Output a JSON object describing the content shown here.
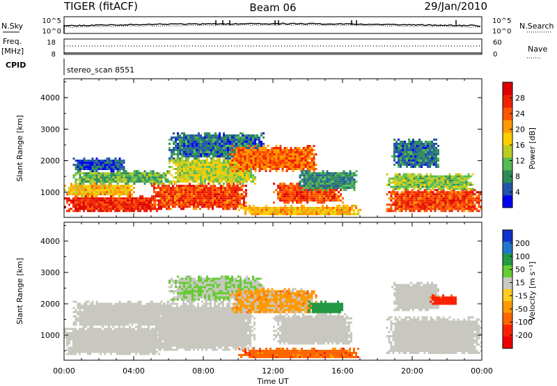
{
  "header": {
    "radar": "TIGER (fitACF)",
    "beam": "Beam 06",
    "date": "29/Jan/2010"
  },
  "noise_panel": {
    "left_label": "N.Sky",
    "right_label": "N.Search",
    "left_ticks": [
      "10^5",
      "10^0"
    ],
    "right_ticks": [
      "10^5",
      "10^0"
    ]
  },
  "freq_panel": {
    "left_label_top": "Freq.",
    "left_label_bottom": "[MHz]",
    "right_label": "Nave",
    "left_ticks": [
      "18",
      "8"
    ],
    "right_ticks": [
      "60",
      "0"
    ]
  },
  "cpid": {
    "label": "CPID",
    "value": "stereo_scan 8551"
  },
  "axes": {
    "ylabel": "Slant Range [km]",
    "yticks": [
      "1000",
      "2000",
      "3000",
      "4000"
    ],
    "xticks": [
      "00:00",
      "04:00",
      "08:00",
      "12:00",
      "16:00",
      "20:00",
      "00:00"
    ],
    "xlabel": "Time UT"
  },
  "power_colorbar": {
    "label": "Power [dB]",
    "ticks": [
      "4",
      "8",
      "12",
      "16",
      "20",
      "24",
      "28"
    ],
    "colors": [
      "#0000ee",
      "#2255aa",
      "#2e8b57",
      "#55bb55",
      "#bbcc22",
      "#ffcc00",
      "#ff9900",
      "#ff5500",
      "#ee2200",
      "#dd0000"
    ]
  },
  "velocity_colorbar": {
    "label": "Velocity [m s⁻¹]",
    "ticks": [
      "200",
      "100",
      "50",
      "15",
      "-15",
      "-50",
      "-100",
      "-200"
    ],
    "colors": [
      "#1133cc",
      "#2277cc",
      "#229944",
      "#66cc33",
      "#c8c8c0",
      "#ffcc22",
      "#ff9900",
      "#ff6600",
      "#ff2200",
      "#ee0000"
    ]
  },
  "chart_data": [
    {
      "type": "heatmap",
      "title": "Power",
      "xlabel": "Time UT",
      "ylabel": "Slant Range [km]",
      "xlim": [
        0,
        24
      ],
      "ylim": [
        200,
        4600
      ],
      "colorbar_label": "Power [dB]",
      "regions": [
        {
          "t0": 0.0,
          "t1": 5.6,
          "r0": 400,
          "r1": 900,
          "value": 28
        },
        {
          "t0": 0.0,
          "t1": 4.0,
          "r0": 900,
          "r1": 1300,
          "value": 20
        },
        {
          "t0": 0.5,
          "t1": 6.0,
          "r0": 1300,
          "r1": 1700,
          "value": 12
        },
        {
          "t0": 0.5,
          "t1": 3.5,
          "r0": 1700,
          "r1": 2100,
          "value": 6
        },
        {
          "t0": 5.0,
          "t1": 10.5,
          "r0": 500,
          "r1": 1300,
          "value": 26
        },
        {
          "t0": 6.0,
          "t1": 11.0,
          "r0": 1300,
          "r1": 2100,
          "value": 16
        },
        {
          "t0": 6.0,
          "t1": 11.5,
          "r0": 2100,
          "r1": 2900,
          "value": 8
        },
        {
          "t0": 9.5,
          "t1": 14.5,
          "r0": 1700,
          "r1": 2500,
          "value": 24
        },
        {
          "t0": 12.0,
          "t1": 16.0,
          "r0": 700,
          "r1": 1300,
          "value": 26
        },
        {
          "t0": 13.5,
          "t1": 16.8,
          "r0": 1100,
          "r1": 1700,
          "value": 10
        },
        {
          "t0": 10.0,
          "t1": 17.0,
          "r0": 300,
          "r1": 600,
          "value": 20
        },
        {
          "t0": 18.5,
          "t1": 24.0,
          "r0": 400,
          "r1": 1100,
          "value": 26
        },
        {
          "t0": 18.5,
          "t1": 23.5,
          "r0": 1100,
          "r1": 1600,
          "value": 14
        },
        {
          "t0": 18.8,
          "t1": 21.5,
          "r0": 1800,
          "r1": 2700,
          "value": 8
        }
      ]
    },
    {
      "type": "heatmap",
      "title": "Velocity",
      "xlabel": "Time UT",
      "ylabel": "Slant Range [km]",
      "xlim": [
        0,
        24
      ],
      "ylim": [
        200,
        4600
      ],
      "colorbar_label": "Velocity [m s⁻¹]",
      "regions": [
        {
          "t0": 0.0,
          "t1": 5.6,
          "r0": 400,
          "r1": 1300,
          "value": 0
        },
        {
          "t0": 0.5,
          "t1": 6.0,
          "r0": 1300,
          "r1": 2100,
          "value": 0
        },
        {
          "t0": 5.0,
          "t1": 11.0,
          "r0": 500,
          "r1": 2100,
          "value": 0
        },
        {
          "t0": 6.0,
          "t1": 11.5,
          "r0": 2100,
          "r1": 2900,
          "value": 30
        },
        {
          "t0": 9.5,
          "t1": 14.5,
          "r0": 1700,
          "r1": 2500,
          "value": -20
        },
        {
          "t0": 12.0,
          "t1": 16.5,
          "r0": 700,
          "r1": 1700,
          "value": 0
        },
        {
          "t0": 14.0,
          "t1": 16.0,
          "r0": 1700,
          "r1": 2100,
          "value": 80
        },
        {
          "t0": 10.0,
          "t1": 17.0,
          "r0": 300,
          "r1": 600,
          "value": -40
        },
        {
          "t0": 18.5,
          "t1": 24.0,
          "r0": 400,
          "r1": 1600,
          "value": 0
        },
        {
          "t0": 18.8,
          "t1": 21.5,
          "r0": 1800,
          "r1": 2700,
          "value": 0
        },
        {
          "t0": 21.0,
          "t1": 22.5,
          "r0": 2000,
          "r1": 2300,
          "value": -60
        }
      ]
    }
  ]
}
